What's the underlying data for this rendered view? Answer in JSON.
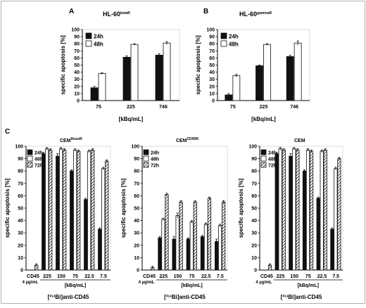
{
  "chart_data": [
    {
      "panel": "A",
      "type": "bar",
      "title": "HL-60",
      "title_sup": "betaR",
      "xlabel": "[kBq/mL]",
      "ylabel": "specific apoptosis [%]",
      "ylim": [
        0,
        100
      ],
      "yticks": [
        0,
        10,
        20,
        30,
        40,
        50,
        60,
        70,
        80,
        90,
        100
      ],
      "categories": [
        "75",
        "225",
        "746"
      ],
      "legend": "top-left",
      "series": [
        {
          "name": "24h",
          "fill": "solid",
          "values": [
            18,
            61,
            64
          ],
          "errors": [
            2,
            2,
            2
          ]
        },
        {
          "name": "48h",
          "fill": "open",
          "values": [
            38,
            79,
            81
          ],
          "errors": [
            1,
            1,
            2
          ]
        }
      ]
    },
    {
      "panel": "B",
      "type": "bar",
      "title": "HL-60",
      "title_sup": "gammaR",
      "xlabel": "[kBq/mL]",
      "ylabel": "specific apoptosis [%]",
      "ylim": [
        0,
        100
      ],
      "yticks": [
        0,
        10,
        20,
        30,
        40,
        50,
        60,
        70,
        80,
        90,
        100
      ],
      "categories": [
        "75",
        "225",
        "746"
      ],
      "legend": "top-left",
      "series": [
        {
          "name": "24h",
          "fill": "solid",
          "values": [
            8,
            49,
            62
          ],
          "errors": [
            2,
            1,
            2
          ]
        },
        {
          "name": "48h",
          "fill": "open",
          "values": [
            35,
            79,
            81
          ],
          "errors": [
            2,
            1,
            3
          ]
        }
      ]
    },
    {
      "panel": "C",
      "type": "bar",
      "title": "CEM",
      "title_sup": "DoxoR",
      "xlabel": "[kBq/mL]",
      "sublabel": "[²¹³Bi]anti-CD45",
      "ctrl_label": "CD45",
      "ctrl_sub": "4 µg/mL",
      "ylabel": "specific apoptosis [%]",
      "ylim": [
        0,
        100
      ],
      "yticks": [
        0,
        10,
        20,
        30,
        40,
        50,
        60,
        70,
        80,
        90,
        100
      ],
      "categories": [
        "CD45",
        "225",
        "150",
        "75",
        "22.5",
        "7.5"
      ],
      "legend": "top-left",
      "series": [
        {
          "name": "24h",
          "fill": "solid",
          "values": [
            0,
            94,
            92,
            80,
            57,
            33
          ],
          "errors": [
            0,
            1,
            2,
            1,
            1,
            1
          ]
        },
        {
          "name": "48h",
          "fill": "open",
          "values": [
            0,
            98,
            98,
            97,
            96,
            82
          ],
          "errors": [
            0,
            1,
            1,
            1,
            1,
            1
          ]
        },
        {
          "name": "72h",
          "fill": "hatched",
          "values": [
            4,
            97,
            97,
            96,
            97,
            88
          ],
          "errors": [
            1,
            1,
            1,
            1,
            1,
            1
          ]
        }
      ]
    },
    {
      "panel": "C",
      "type": "bar",
      "title": "CEM",
      "title_sup": "CD95R",
      "xlabel": "[kBq/mL]",
      "sublabel": "[²¹³Bi]anti-CD45",
      "ctrl_label": "CD45",
      "ctrl_sub": "4 µg/mL",
      "ylabel": "specific apoptosis [%]",
      "ylim": [
        0,
        100
      ],
      "yticks": [
        0,
        10,
        20,
        30,
        40,
        50,
        60,
        70,
        80,
        90,
        100
      ],
      "categories": [
        "CD45",
        "225",
        "150",
        "75",
        "22.5",
        "7.5"
      ],
      "legend": "top-left",
      "series": [
        {
          "name": "24h",
          "fill": "solid",
          "values": [
            0,
            26,
            25,
            25,
            27,
            23
          ],
          "errors": [
            0,
            1,
            2,
            1,
            1,
            2
          ]
        },
        {
          "name": "48h",
          "fill": "open",
          "values": [
            0,
            41,
            44,
            39,
            37,
            36
          ],
          "errors": [
            0,
            1,
            2,
            1,
            1,
            1
          ]
        },
        {
          "name": "72h",
          "fill": "hatched",
          "values": [
            2,
            61,
            55,
            55,
            58,
            55
          ],
          "errors": [
            1,
            1,
            1,
            1,
            1,
            1
          ]
        }
      ]
    },
    {
      "panel": "C",
      "type": "bar",
      "title": "CEM",
      "title_sup": "",
      "xlabel": "[kBq/mL]",
      "sublabel": "[²¹³Bi]anti-CD45",
      "ctrl_label": "CD45",
      "ctrl_sub": "4 µg/mL",
      "ylabel": "specific apoptosis [%]",
      "ylim": [
        0,
        100
      ],
      "yticks": [
        0,
        10,
        20,
        30,
        40,
        50,
        60,
        70,
        80,
        90,
        100
      ],
      "categories": [
        "CD45",
        "225",
        "150",
        "75",
        "22.5",
        "7.5"
      ],
      "legend": "top-left",
      "series": [
        {
          "name": "24h",
          "fill": "solid",
          "values": [
            0,
            94,
            92,
            80,
            58,
            33
          ],
          "errors": [
            0,
            1,
            2,
            1,
            1,
            1
          ]
        },
        {
          "name": "48h",
          "fill": "open",
          "values": [
            0,
            98,
            98,
            97,
            96,
            82
          ],
          "errors": [
            0,
            1,
            1,
            1,
            1,
            1
          ]
        },
        {
          "name": "72h",
          "fill": "hatched",
          "values": [
            4,
            97,
            97,
            96,
            97,
            90
          ],
          "errors": [
            1,
            1,
            1,
            1,
            1,
            1
          ]
        }
      ]
    }
  ],
  "figure": {
    "frame_color": "#b0b0b0",
    "bar_color": "#111111"
  }
}
